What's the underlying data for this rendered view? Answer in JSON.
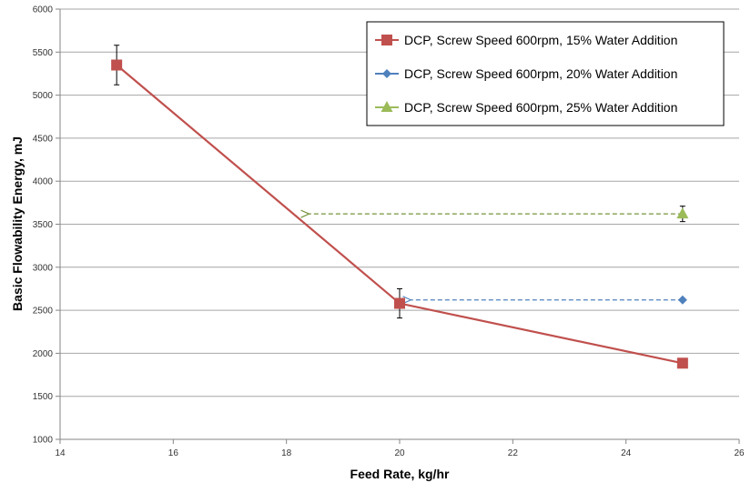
{
  "chart_data": {
    "type": "line",
    "xlabel": "Feed Rate, kg/hr",
    "ylabel": "Basic Flowability Energy, mJ",
    "xlim": [
      14,
      26
    ],
    "ylim": [
      1000,
      6000
    ],
    "xticks": [
      14,
      16,
      18,
      20,
      22,
      24,
      26
    ],
    "yticks": [
      1000,
      1500,
      2000,
      2500,
      3000,
      3500,
      4000,
      4500,
      5000,
      5500,
      6000
    ],
    "grid": "horizontal",
    "legend_position": "top-right",
    "series": [
      {
        "name": "DCP, Screw Speed 600rpm, 15% Water Addition",
        "color": "#C0504D",
        "marker": "square",
        "line_style": "solid",
        "x": [
          15,
          20,
          25
        ],
        "y": [
          5350,
          2580,
          1885
        ],
        "error": [
          230,
          170,
          null
        ]
      },
      {
        "name": "DCP, Screw Speed 600rpm, 20% Water Addition",
        "color": "#4F81BD",
        "marker": "diamond",
        "line_style": "none",
        "x": [
          25
        ],
        "y": [
          2620
        ],
        "error": [
          null
        ]
      },
      {
        "name": "DCP, Screw Speed 600rpm, 25% Water Addition",
        "color": "#9BBB59",
        "marker": "triangle",
        "line_style": "none",
        "x": [
          25
        ],
        "y": [
          3620
        ],
        "error": [
          90
        ]
      }
    ],
    "annotations": [
      {
        "type": "dashed-arrow",
        "color": "#4F81BD",
        "from": [
          25,
          2620
        ],
        "to": [
          20.2,
          2620
        ]
      },
      {
        "type": "dashed-arrow",
        "color": "#77933C",
        "from": [
          25,
          3620
        ],
        "to": [
          18.4,
          3620
        ]
      }
    ]
  }
}
